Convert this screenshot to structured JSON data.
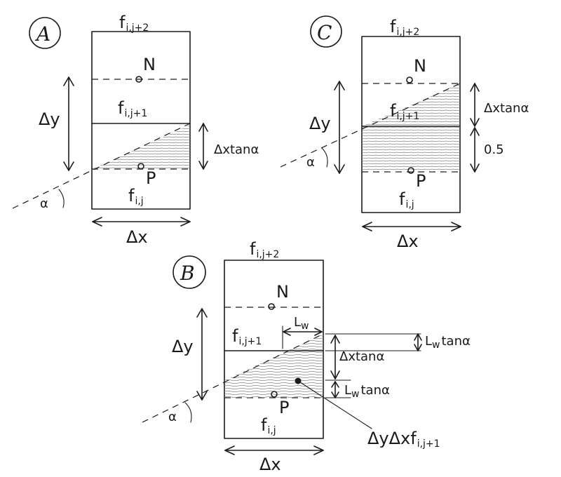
{
  "panels": {
    "A": {
      "letter": "A",
      "f_top": "f",
      "f_top_sub": "i,j+2",
      "f_mid": "f",
      "f_mid_sub": "i,j+1",
      "f_bot": "f",
      "f_bot_sub": "i,j",
      "node_n": "N",
      "node_p": "P",
      "dy": "Δy",
      "dx": "Δx",
      "alpha": "α",
      "dxtan": "Δxtanα"
    },
    "C": {
      "letter": "C",
      "f_top": "f",
      "f_top_sub": "i,j+2",
      "f_mid": "f",
      "f_mid_sub": "i,j+1",
      "f_bot": "f",
      "f_bot_sub": "i,j",
      "node_n": "N",
      "node_p": "P",
      "dy": "Δy",
      "dx": "Δx",
      "alpha": "α",
      "dxtan": "Δxtanα",
      "half": "0.5"
    },
    "B": {
      "letter": "B",
      "f_top": "f",
      "f_top_sub": "i,j+2",
      "f_mid": "f",
      "f_mid_sub": "i,j+1",
      "f_bot": "f",
      "f_bot_sub": "i,j",
      "node_n": "N",
      "node_p": "P",
      "dy": "Δy",
      "dx": "Δx",
      "alpha": "α",
      "lw": "L",
      "lw_sub": "w",
      "lwtan_top": "L",
      "lwtan_top_sub": "w",
      "lwtan_top_rest": "tanα",
      "dxtan": "Δxtanα",
      "lwtan_bot": "L",
      "lwtan_bot_sub": "w",
      "lwtan_bot_rest": "tanα",
      "pointer": "ΔyΔxf",
      "pointer_sub": "i,j+1"
    }
  }
}
